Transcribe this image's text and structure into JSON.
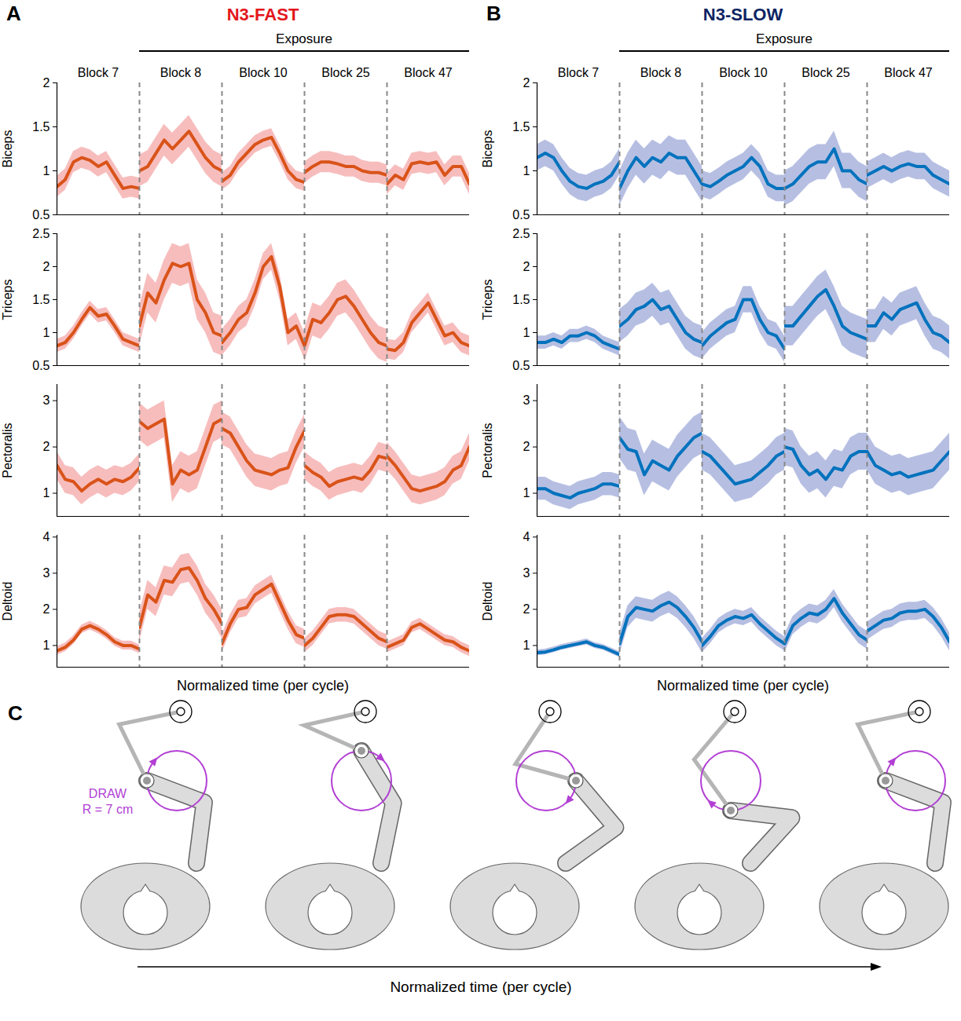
{
  "chart_data": [
    {
      "type": "line",
      "panel": "A",
      "title": "N3-FAST",
      "color": "#d95319",
      "header": {
        "text": "Exposure",
        "from": "Block 8",
        "to": "Block 47"
      },
      "x_label": "Normalized time (per cycle)",
      "tick_labels": "y",
      "xlim": [
        0,
        1
      ],
      "x": [
        0,
        0.1,
        0.2,
        0.3,
        0.4,
        0.5,
        0.6,
        0.7,
        0.8,
        0.9,
        1
      ],
      "rows": [
        {
          "y_label": "Biceps",
          "ylim": [
            0.5,
            2
          ],
          "yticks": [
            0.5,
            1,
            1.5,
            2
          ],
          "series": [
            {
              "name": "Block 7",
              "values": [
                0.82,
                0.9,
                1.1,
                1.15,
                1.12,
                1.05,
                1.1,
                0.95,
                0.8,
                0.82,
                0.8
              ],
              "error": 0.12
            },
            {
              "name": "Block 8",
              "values": [
                1.0,
                1.05,
                1.2,
                1.35,
                1.25,
                1.35,
                1.45,
                1.3,
                1.15,
                1.05,
                1.0
              ],
              "error": 0.18
            },
            {
              "name": "Block 10",
              "values": [
                0.88,
                0.95,
                1.1,
                1.2,
                1.3,
                1.35,
                1.38,
                1.2,
                1.0,
                0.9,
                0.87
              ],
              "error": 0.1
            },
            {
              "name": "Block 25",
              "values": [
                0.98,
                1.05,
                1.1,
                1.1,
                1.08,
                1.05,
                1.05,
                1.0,
                0.98,
                0.98,
                0.95
              ],
              "error": 0.12
            },
            {
              "name": "Block 47",
              "values": [
                0.85,
                0.95,
                0.9,
                1.08,
                1.1,
                1.08,
                1.1,
                0.95,
                1.05,
                1.05,
                0.85
              ],
              "error": 0.12
            }
          ]
        },
        {
          "y_label": "Triceps",
          "ylim": [
            0.5,
            2.5
          ],
          "yticks": [
            0.5,
            1,
            1.5,
            2,
            2.5
          ],
          "series": [
            {
              "name": "Block 7",
              "values": [
                0.8,
                0.85,
                1.0,
                1.2,
                1.38,
                1.25,
                1.28,
                1.1,
                0.9,
                0.85,
                0.8
              ],
              "error": 0.1
            },
            {
              "name": "Block 8",
              "values": [
                1.1,
                1.6,
                1.45,
                1.8,
                2.05,
                2.0,
                2.05,
                1.5,
                1.3,
                1.0,
                0.95
              ],
              "error": 0.3
            },
            {
              "name": "Block 10",
              "values": [
                0.85,
                1.0,
                1.2,
                1.3,
                1.6,
                2.0,
                2.15,
                1.7,
                1.0,
                1.1,
                0.8
              ],
              "error": 0.2
            },
            {
              "name": "Block 25",
              "values": [
                0.8,
                1.2,
                1.15,
                1.3,
                1.5,
                1.55,
                1.4,
                1.2,
                1.0,
                0.85,
                0.8
              ],
              "error": 0.25
            },
            {
              "name": "Block 47",
              "values": [
                0.75,
                0.73,
                0.85,
                1.15,
                1.3,
                1.45,
                1.2,
                0.95,
                1.0,
                0.85,
                0.8
              ],
              "error": 0.15
            }
          ]
        },
        {
          "y_label": "Pectoralis",
          "ylim": [
            0.5,
            3.35
          ],
          "yticks": [
            1,
            2,
            3
          ],
          "series": [
            {
              "name": "Block 7",
              "values": [
                1.6,
                1.3,
                1.25,
                1.05,
                1.2,
                1.3,
                1.2,
                1.3,
                1.25,
                1.35,
                1.55
              ],
              "error": 0.3
            },
            {
              "name": "Block 8",
              "values": [
                2.55,
                2.4,
                2.5,
                2.6,
                1.2,
                1.5,
                1.4,
                1.5,
                2.0,
                2.5,
                2.6
              ],
              "error": 0.4
            },
            {
              "name": "Block 10",
              "values": [
                2.4,
                2.3,
                2.0,
                1.7,
                1.5,
                1.45,
                1.4,
                1.5,
                1.55,
                2.0,
                2.35
              ],
              "error": 0.35
            },
            {
              "name": "Block 25",
              "values": [
                1.6,
                1.45,
                1.35,
                1.15,
                1.25,
                1.3,
                1.35,
                1.3,
                1.5,
                1.8,
                1.75
              ],
              "error": 0.3
            },
            {
              "name": "Block 47",
              "values": [
                1.8,
                1.6,
                1.35,
                1.1,
                1.05,
                1.1,
                1.15,
                1.25,
                1.5,
                1.6,
                2.0
              ],
              "error": 0.3
            }
          ]
        },
        {
          "y_label": "Deltoid",
          "ylim": [
            0.4,
            4.05
          ],
          "yticks": [
            1,
            2,
            3,
            4
          ],
          "series": [
            {
              "name": "Block 7",
              "values": [
                0.85,
                0.95,
                1.15,
                1.45,
                1.55,
                1.45,
                1.3,
                1.1,
                1.0,
                1.0,
                0.9
              ],
              "error": 0.12
            },
            {
              "name": "Block 8",
              "values": [
                1.5,
                2.4,
                2.2,
                2.8,
                2.75,
                3.1,
                3.15,
                2.8,
                2.3,
                2.0,
                1.6
              ],
              "error": 0.4
            },
            {
              "name": "Block 10",
              "values": [
                1.05,
                1.6,
                2.0,
                2.05,
                2.4,
                2.55,
                2.7,
                2.2,
                1.7,
                1.3,
                1.2
              ],
              "error": 0.25
            },
            {
              "name": "Block 25",
              "values": [
                1.0,
                1.2,
                1.5,
                1.8,
                1.85,
                1.85,
                1.8,
                1.6,
                1.4,
                1.2,
                1.1
              ],
              "error": 0.2
            },
            {
              "name": "Block 47",
              "values": [
                0.95,
                1.05,
                1.15,
                1.5,
                1.6,
                1.45,
                1.3,
                1.15,
                1.1,
                0.95,
                0.85
              ],
              "error": 0.15
            }
          ]
        }
      ]
    },
    {
      "type": "line",
      "panel": "B",
      "title": "N3-SLOW",
      "color": "#0072bd",
      "header": {
        "text": "Exposure",
        "from": "Block 8",
        "to": "Block 47"
      },
      "x_label": "Normalized time (per cycle)",
      "tick_labels": "y",
      "xlim": [
        0,
        1
      ],
      "x": [
        0,
        0.1,
        0.2,
        0.3,
        0.4,
        0.5,
        0.6,
        0.7,
        0.8,
        0.9,
        1
      ],
      "rows": [
        {
          "y_label": "Biceps",
          "ylim": [
            0.5,
            2
          ],
          "yticks": [
            0.5,
            1,
            1.5,
            2
          ],
          "series": [
            {
              "name": "Block 7",
              "values": [
                1.15,
                1.2,
                1.15,
                1.0,
                0.88,
                0.82,
                0.8,
                0.85,
                0.88,
                0.95,
                1.1
              ],
              "error": 0.15
            },
            {
              "name": "Block 8",
              "values": [
                0.8,
                1.0,
                1.15,
                1.05,
                1.15,
                1.1,
                1.2,
                1.15,
                1.15,
                1.0,
                0.85
              ],
              "error": 0.2
            },
            {
              "name": "Block 10",
              "values": [
                0.85,
                0.82,
                0.88,
                0.95,
                1.0,
                1.05,
                1.15,
                1.05,
                0.85,
                0.8,
                0.8
              ],
              "error": 0.15
            },
            {
              "name": "Block 25",
              "values": [
                0.8,
                0.85,
                0.95,
                1.05,
                1.1,
                1.1,
                1.25,
                1.0,
                1.0,
                0.9,
                0.85
              ],
              "error": 0.2
            },
            {
              "name": "Block 47",
              "values": [
                0.95,
                1.0,
                1.05,
                1.0,
                1.05,
                1.08,
                1.05,
                1.05,
                0.95,
                0.9,
                0.85
              ],
              "error": 0.15
            }
          ]
        },
        {
          "y_label": "Triceps",
          "ylim": [
            0.5,
            2.5
          ],
          "yticks": [
            0.5,
            1,
            1.5,
            2,
            2.5
          ],
          "series": [
            {
              "name": "Block 7",
              "values": [
                0.85,
                0.85,
                0.9,
                0.85,
                0.95,
                0.95,
                1.0,
                0.95,
                0.85,
                0.8,
                0.75
              ],
              "error": 0.1
            },
            {
              "name": "Block 8",
              "values": [
                1.1,
                1.2,
                1.35,
                1.4,
                1.5,
                1.35,
                1.4,
                1.2,
                1.0,
                0.9,
                0.85
              ],
              "error": 0.25
            },
            {
              "name": "Block 10",
              "values": [
                0.8,
                0.95,
                1.05,
                1.15,
                1.2,
                1.5,
                1.5,
                1.2,
                1.0,
                0.95,
                0.75
              ],
              "error": 0.2
            },
            {
              "name": "Block 25",
              "values": [
                1.1,
                1.1,
                1.25,
                1.4,
                1.55,
                1.65,
                1.4,
                1.1,
                1.0,
                0.95,
                0.9
              ],
              "error": 0.3
            },
            {
              "name": "Block 47",
              "values": [
                1.1,
                1.1,
                1.3,
                1.2,
                1.35,
                1.4,
                1.45,
                1.2,
                1.0,
                0.95,
                0.85
              ],
              "error": 0.25
            }
          ]
        },
        {
          "y_label": "Pectoralis",
          "ylim": [
            0.5,
            3.35
          ],
          "yticks": [
            1,
            2,
            3
          ],
          "series": [
            {
              "name": "Block 7",
              "values": [
                1.1,
                1.1,
                1.0,
                0.95,
                0.9,
                1.0,
                1.05,
                1.1,
                1.2,
                1.2,
                1.15
              ],
              "error": 0.25
            },
            {
              "name": "Block 8",
              "values": [
                2.2,
                1.95,
                1.9,
                1.4,
                1.7,
                1.6,
                1.5,
                1.8,
                2.0,
                2.2,
                2.3
              ],
              "error": 0.45
            },
            {
              "name": "Block 10",
              "values": [
                1.9,
                1.8,
                1.6,
                1.4,
                1.2,
                1.25,
                1.3,
                1.45,
                1.6,
                1.8,
                1.9
              ],
              "error": 0.4
            },
            {
              "name": "Block 25",
              "values": [
                2.0,
                1.95,
                1.6,
                1.4,
                1.5,
                1.3,
                1.55,
                1.5,
                1.8,
                1.9,
                1.9
              ],
              "error": 0.4
            },
            {
              "name": "Block 47",
              "values": [
                1.9,
                1.6,
                1.5,
                1.4,
                1.45,
                1.35,
                1.4,
                1.45,
                1.5,
                1.7,
                1.9
              ],
              "error": 0.4
            }
          ]
        },
        {
          "y_label": "Deltoid",
          "ylim": [
            0.4,
            4.05
          ],
          "yticks": [
            1,
            2,
            3,
            4
          ],
          "series": [
            {
              "name": "Block 7",
              "values": [
                0.8,
                0.82,
                0.88,
                0.95,
                1.0,
                1.05,
                1.1,
                1.0,
                0.95,
                0.85,
                0.75
              ],
              "error": 0.08
            },
            {
              "name": "Block 8",
              "values": [
                1.05,
                1.8,
                2.05,
                2.0,
                1.95,
                2.1,
                2.2,
                2.05,
                1.8,
                1.5,
                1.1
              ],
              "error": 0.3
            },
            {
              "name": "Block 10",
              "values": [
                1.0,
                1.25,
                1.55,
                1.7,
                1.8,
                1.75,
                1.85,
                1.6,
                1.4,
                1.2,
                1.05
              ],
              "error": 0.2
            },
            {
              "name": "Block 25",
              "values": [
                1.05,
                1.55,
                1.75,
                1.9,
                1.85,
                2.0,
                2.3,
                1.9,
                1.6,
                1.3,
                1.15
              ],
              "error": 0.25
            },
            {
              "name": "Block 47",
              "values": [
                1.4,
                1.55,
                1.7,
                1.75,
                1.9,
                1.95,
                1.95,
                2.0,
                1.8,
                1.5,
                1.1
              ],
              "error": 0.25
            }
          ]
        }
      ]
    }
  ],
  "diagram": {
    "panel": "C",
    "label": "DRAW",
    "radius_label": "R = 7 cm",
    "x_label": "Normalized time (per cycle)"
  }
}
